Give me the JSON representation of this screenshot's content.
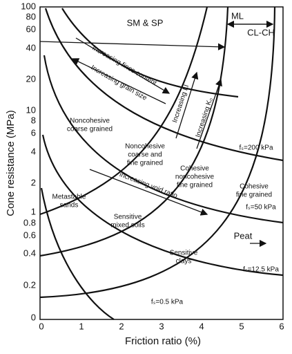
{
  "axes": {
    "x_label": "Friction ratio (%)",
    "y_label": "Cone resistance (MPa)",
    "x_ticks": [
      "0",
      "1",
      "2",
      "3",
      "4",
      "5",
      "6"
    ],
    "y_ticks": [
      "100",
      "80",
      "60",
      "40",
      "20",
      "10",
      "8",
      "6",
      "4",
      "2",
      "1",
      "0.8",
      "0.6",
      "0.4",
      "0.2",
      "0"
    ]
  },
  "zones": {
    "sm_sp": "SM & SP",
    "ml": "ML",
    "cl_ch": "CL-CH",
    "fines": "Increasing fines content",
    "grain": "Increasing grain size",
    "li": "Increasing LI",
    "ko": "Increasing K₀",
    "nc_coarse": [
      "Noncohesive",
      "coarse grained"
    ],
    "nc_mixed": [
      "Noncohesive",
      "coarse and",
      "fine grained"
    ],
    "coh_nc": [
      "Cohesive",
      "noncohesive",
      "fine grained"
    ],
    "coh_fine": [
      "Cohesive",
      "fine grained"
    ],
    "metastable": [
      "Metastable",
      "sands"
    ],
    "void": "increasing void ratio",
    "mixed": [
      "Sensitive",
      "mixed soils"
    ],
    "peat": "Peat",
    "clays": [
      "Sensitive",
      "clays"
    ]
  },
  "curves": {
    "fs200": "fₛ=200 kPa",
    "fs50": "fₛ=50 kPa",
    "fs12": "fₛ=12.5 kPa",
    "fs05": "fₛ=0.5 kPa"
  }
}
